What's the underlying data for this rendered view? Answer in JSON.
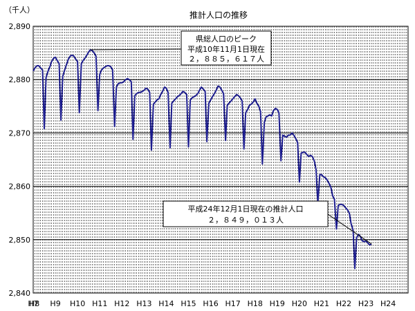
{
  "chart_data": {
    "type": "line",
    "title": "推計人口の推移",
    "ylabel": "（千人）",
    "xlabel": "",
    "ylim": [
      2840,
      2890
    ],
    "yticks": [
      2840,
      2850,
      2860,
      2870,
      2880,
      2890
    ],
    "ytick_labels": [
      "2,840",
      "2,850",
      "2,860",
      "2,870",
      "2,880",
      "2,890"
    ],
    "x_start_year": 8,
    "x_end_year": 24.9,
    "xtick_labels": [
      "H7",
      "H8",
      "H9",
      "H10",
      "H11",
      "H12",
      "H13",
      "H14",
      "H15",
      "H16",
      "H17",
      "H18",
      "H19",
      "H20",
      "H21",
      "H22",
      "H23",
      "H24"
    ],
    "xtick_years": [
      8,
      8.05,
      9,
      10,
      11,
      12,
      13,
      14,
      15,
      16,
      17,
      18,
      19,
      20,
      21,
      22,
      23,
      24
    ],
    "vertical_grid": "monthly-dashed",
    "horizontal_grid": true,
    "series": [
      {
        "color": "#1a1a8c",
        "points": [
          [
            8.0,
            2881.6
          ],
          [
            8.08,
            2882.2
          ],
          [
            8.17,
            2882.6
          ],
          [
            8.25,
            2882.6
          ],
          [
            8.33,
            2882.2
          ],
          [
            8.42,
            2881.8
          ],
          [
            8.5,
            2870.8
          ],
          [
            8.58,
            2880.4
          ],
          [
            8.67,
            2881.6
          ],
          [
            8.75,
            2882.4
          ],
          [
            8.83,
            2883.4
          ],
          [
            8.92,
            2884.0
          ],
          [
            9.0,
            2884.2
          ],
          [
            9.08,
            2883.6
          ],
          [
            9.17,
            2883.0
          ],
          [
            9.25,
            2872.4
          ],
          [
            9.33,
            2880.6
          ],
          [
            9.42,
            2881.8
          ],
          [
            9.5,
            2882.8
          ],
          [
            9.58,
            2883.8
          ],
          [
            9.67,
            2884.4
          ],
          [
            9.75,
            2884.6
          ],
          [
            9.83,
            2884.4
          ],
          [
            9.92,
            2883.8
          ],
          [
            10.0,
            2883.4
          ],
          [
            10.08,
            2873.8
          ],
          [
            10.17,
            2883.0
          ],
          [
            10.25,
            2883.6
          ],
          [
            10.33,
            2884.0
          ],
          [
            10.42,
            2884.6
          ],
          [
            10.5,
            2885.2
          ],
          [
            10.58,
            2885.6
          ],
          [
            10.67,
            2885.4
          ],
          [
            10.75,
            2885.0
          ],
          [
            10.83,
            2884.4
          ],
          [
            10.92,
            2874.2
          ],
          [
            11.0,
            2881.0
          ],
          [
            11.08,
            2881.8
          ],
          [
            11.17,
            2882.2
          ],
          [
            11.25,
            2882.4
          ],
          [
            11.33,
            2882.6
          ],
          [
            11.42,
            2882.6
          ],
          [
            11.5,
            2882.4
          ],
          [
            11.58,
            2881.8
          ],
          [
            11.67,
            2871.2
          ],
          [
            11.75,
            2878.6
          ],
          [
            11.83,
            2879.2
          ],
          [
            11.92,
            2879.4
          ],
          [
            12.0,
            2879.4
          ],
          [
            12.08,
            2879.6
          ],
          [
            12.17,
            2880.0
          ],
          [
            12.25,
            2880.2
          ],
          [
            12.33,
            2880.0
          ],
          [
            12.42,
            2879.6
          ],
          [
            12.5,
            2868.8
          ],
          [
            12.58,
            2877.0
          ],
          [
            12.67,
            2877.4
          ],
          [
            12.75,
            2877.6
          ],
          [
            12.83,
            2877.6
          ],
          [
            12.92,
            2877.8
          ],
          [
            13.0,
            2878.0
          ],
          [
            13.08,
            2878.4
          ],
          [
            13.17,
            2878.2
          ],
          [
            13.25,
            2877.6
          ],
          [
            13.33,
            2866.8
          ],
          [
            13.42,
            2875.4
          ],
          [
            13.5,
            2875.8
          ],
          [
            13.58,
            2876.2
          ],
          [
            13.67,
            2876.4
          ],
          [
            13.75,
            2877.2
          ],
          [
            13.83,
            2877.8
          ],
          [
            13.92,
            2878.6
          ],
          [
            14.0,
            2878.4
          ],
          [
            14.08,
            2877.6
          ],
          [
            14.17,
            2867.2
          ],
          [
            14.25,
            2875.6
          ],
          [
            14.33,
            2876.0
          ],
          [
            14.42,
            2876.4
          ],
          [
            14.5,
            2876.8
          ],
          [
            14.58,
            2877.0
          ],
          [
            14.67,
            2877.4
          ],
          [
            14.75,
            2877.8
          ],
          [
            14.83,
            2877.6
          ],
          [
            14.92,
            2877.2
          ],
          [
            15.0,
            2867.4
          ],
          [
            15.08,
            2876.2
          ],
          [
            15.17,
            2876.6
          ],
          [
            15.25,
            2876.8
          ],
          [
            15.33,
            2877.0
          ],
          [
            15.42,
            2877.4
          ],
          [
            15.5,
            2878.0
          ],
          [
            15.58,
            2878.6
          ],
          [
            15.67,
            2878.2
          ],
          [
            15.75,
            2877.8
          ],
          [
            15.83,
            2868.4
          ],
          [
            15.92,
            2875.6
          ],
          [
            16.0,
            2876.2
          ],
          [
            16.08,
            2876.8
          ],
          [
            16.17,
            2877.4
          ],
          [
            16.25,
            2878.0
          ],
          [
            16.33,
            2878.8
          ],
          [
            16.42,
            2878.6
          ],
          [
            16.5,
            2878.0
          ],
          [
            16.58,
            2877.4
          ],
          [
            16.67,
            2868.6
          ],
          [
            16.75,
            2875.2
          ],
          [
            16.83,
            2875.6
          ],
          [
            16.92,
            2876.0
          ],
          [
            17.0,
            2876.4
          ],
          [
            17.08,
            2876.8
          ],
          [
            17.17,
            2877.2
          ],
          [
            17.25,
            2877.0
          ],
          [
            17.33,
            2876.6
          ],
          [
            17.42,
            2876.0
          ],
          [
            17.5,
            2867.0
          ],
          [
            17.58,
            2873.8
          ],
          [
            17.67,
            2874.4
          ],
          [
            17.75,
            2875.2
          ],
          [
            17.83,
            2875.4
          ],
          [
            17.92,
            2875.8
          ],
          [
            18.0,
            2876.4
          ],
          [
            18.08,
            2875.6
          ],
          [
            18.17,
            2875.0
          ],
          [
            18.25,
            2874.0
          ],
          [
            18.33,
            2864.2
          ],
          [
            18.42,
            2872.0
          ],
          [
            18.5,
            2873.0
          ],
          [
            18.58,
            2873.2
          ],
          [
            18.67,
            2873.4
          ],
          [
            18.75,
            2873.2
          ],
          [
            18.83,
            2874.2
          ],
          [
            18.92,
            2874.6
          ],
          [
            19.0,
            2874.4
          ],
          [
            19.08,
            2873.8
          ],
          [
            19.17,
            2864.8
          ],
          [
            19.25,
            2869.6
          ],
          [
            19.33,
            2869.4
          ],
          [
            19.42,
            2869.2
          ],
          [
            19.5,
            2869.6
          ],
          [
            19.58,
            2869.6
          ],
          [
            19.67,
            2870.0
          ],
          [
            19.75,
            2869.6
          ],
          [
            19.83,
            2869.0
          ],
          [
            19.92,
            2868.2
          ],
          [
            20.0,
            2860.8
          ],
          [
            20.08,
            2866.2
          ],
          [
            20.17,
            2866.4
          ],
          [
            20.25,
            2866.4
          ],
          [
            20.33,
            2866.0
          ],
          [
            20.42,
            2865.6
          ],
          [
            20.5,
            2865.8
          ],
          [
            20.58,
            2865.6
          ],
          [
            20.67,
            2864.8
          ],
          [
            20.75,
            2863.2
          ],
          [
            20.83,
            2856.8
          ],
          [
            20.92,
            2862.2
          ],
          [
            21.0,
            2862.2
          ],
          [
            21.08,
            2861.8
          ],
          [
            21.17,
            2861.6
          ],
          [
            21.25,
            2861.2
          ],
          [
            21.33,
            2860.6
          ],
          [
            21.42,
            2859.8
          ],
          [
            21.5,
            2858.2
          ],
          [
            21.58,
            2857.6
          ],
          [
            21.67,
            2852.0
          ],
          [
            21.75,
            2856.4
          ],
          [
            21.83,
            2856.6
          ],
          [
            21.92,
            2856.6
          ],
          [
            22.0,
            2856.4
          ],
          [
            22.08,
            2856.0
          ],
          [
            22.17,
            2855.6
          ],
          [
            22.25,
            2855.0
          ],
          [
            22.33,
            2853.0
          ],
          [
            22.42,
            2851.8
          ],
          [
            22.5,
            2844.6
          ],
          [
            22.58,
            2850.4
          ],
          [
            22.67,
            2851.0
          ],
          [
            22.75,
            2850.6
          ],
          [
            22.83,
            2849.8
          ],
          [
            22.92,
            2849.6
          ],
          [
            23.0,
            2849.8
          ],
          [
            23.08,
            2849.4
          ],
          [
            23.17,
            2849.0
          ],
          [
            23.25,
            2849.2
          ]
        ]
      }
    ],
    "annotations": [
      {
        "lines": [
          "県総人口のピーク",
          "平成10年11月1日現在",
          "２，８８５，６１７人"
        ],
        "target": [
          10.58,
          2885.6
        ]
      },
      {
        "lines": [
          "平成24年12月1日現在の推計人口",
          "２，８４９，０１３人"
        ],
        "target": [
          23.25,
          2849.2
        ]
      }
    ]
  }
}
